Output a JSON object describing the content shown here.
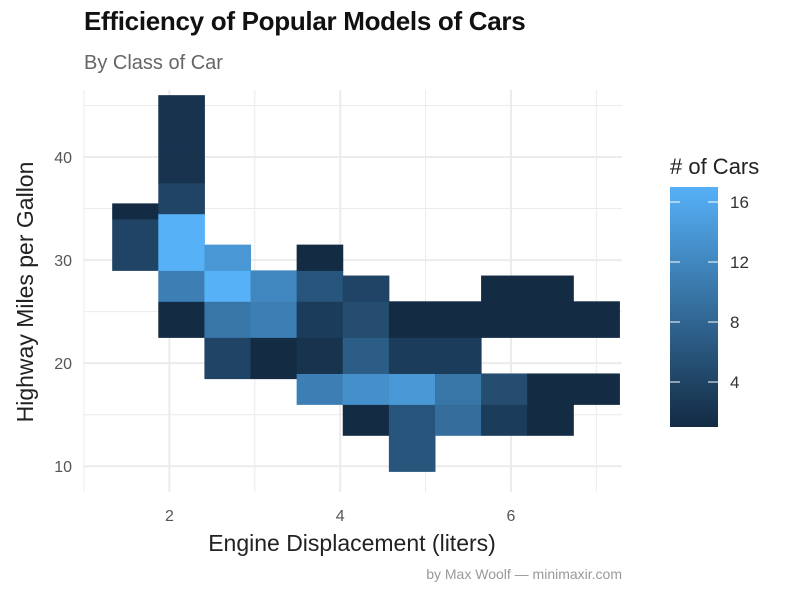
{
  "chart_data": {
    "type": "heatmap",
    "title": "Efficiency of Popular Models of Cars",
    "subtitle": "By Class of Car",
    "caption": "by Max Woolf — minimaxir.com",
    "xlabel": "Engine Displacement (liters)",
    "ylabel": "Highway Miles per Gallon",
    "xlim": [
      1.0,
      7.3
    ],
    "ylim": [
      7.5,
      46.5
    ],
    "xticks": [
      2,
      4,
      6
    ],
    "yticks": [
      10,
      20,
      30,
      40
    ],
    "bin_width_x": 0.54,
    "bin_height_y": 5.0,
    "x_bin_centers": [
      1.6,
      2.14,
      2.68,
      3.22,
      3.76,
      4.3,
      4.84,
      5.38,
      5.92,
      6.46,
      7.0
    ],
    "y_bin_centers": [
      10.0,
      15.0,
      20.0,
      25.0,
      30.0,
      35.0,
      40.0,
      45.0
    ],
    "cells": [
      {
        "x": 1.6,
        "y": 30,
        "count": 4
      },
      {
        "x": 1.6,
        "y": 35,
        "count": 1
      },
      {
        "x": 2.14,
        "y": 25,
        "count": 11
      },
      {
        "x": 2.14,
        "y": 30,
        "count": 17
      },
      {
        "x": 2.14,
        "y": 35,
        "count": 4
      },
      {
        "x": 2.14,
        "y": 40,
        "count": 2
      },
      {
        "x": 2.14,
        "y": 45,
        "count": 2
      },
      {
        "x": 2.14,
        "y": 22,
        "count": 1,
        "note": "lower bin row"
      },
      {
        "x": 2.68,
        "y": 20,
        "count": 4
      },
      {
        "x": 2.68,
        "y": 25,
        "count": 17
      },
      {
        "x": 2.68,
        "y": 30,
        "count": 14
      },
      {
        "x": 3.22,
        "y": 20,
        "count": 1
      },
      {
        "x": 3.22,
        "y": 25,
        "count": 12
      },
      {
        "x": 3.76,
        "y": 15,
        "count": 11
      },
      {
        "x": 3.76,
        "y": 20,
        "count": 2
      },
      {
        "x": 3.76,
        "y": 25,
        "count": 6
      },
      {
        "x": 3.76,
        "y": 30,
        "count": 1
      },
      {
        "x": 4.3,
        "y": 12,
        "count": 1
      },
      {
        "x": 4.3,
        "y": 15,
        "count": 13
      },
      {
        "x": 4.3,
        "y": 20,
        "count": 7
      },
      {
        "x": 4.3,
        "y": 25,
        "count": 4
      },
      {
        "x": 4.84,
        "y": 10,
        "count": 6
      },
      {
        "x": 4.84,
        "y": 15,
        "count": 14
      },
      {
        "x": 4.84,
        "y": 20,
        "count": 3
      },
      {
        "x": 4.84,
        "y": 24,
        "count": 1
      },
      {
        "x": 5.38,
        "y": 15,
        "count": 10
      },
      {
        "x": 5.38,
        "y": 20,
        "count": 3
      },
      {
        "x": 5.38,
        "y": 24,
        "count": 1
      },
      {
        "x": 5.92,
        "y": 13,
        "count": 3
      },
      {
        "x": 5.92,
        "y": 17,
        "count": 5
      },
      {
        "x": 5.92,
        "y": 24,
        "count": 1
      },
      {
        "x": 5.92,
        "y": 27,
        "count": 1
      },
      {
        "x": 6.46,
        "y": 13,
        "count": 1
      },
      {
        "x": 6.46,
        "y": 17,
        "count": 1
      },
      {
        "x": 6.46,
        "y": 24,
        "count": 1
      },
      {
        "x": 6.46,
        "y": 27,
        "count": 1
      },
      {
        "x": 7.0,
        "y": 17,
        "count": 1
      },
      {
        "x": 7.0,
        "y": 24,
        "count": 1
      }
    ],
    "legend": {
      "title": "# of Cars",
      "position": "right",
      "min": 1,
      "max": 17,
      "ticks": [
        4,
        8,
        12,
        16
      ]
    },
    "colors": {
      "low": "#132B43",
      "high": "#56B1F7",
      "grid": "#EBEBEB"
    }
  }
}
